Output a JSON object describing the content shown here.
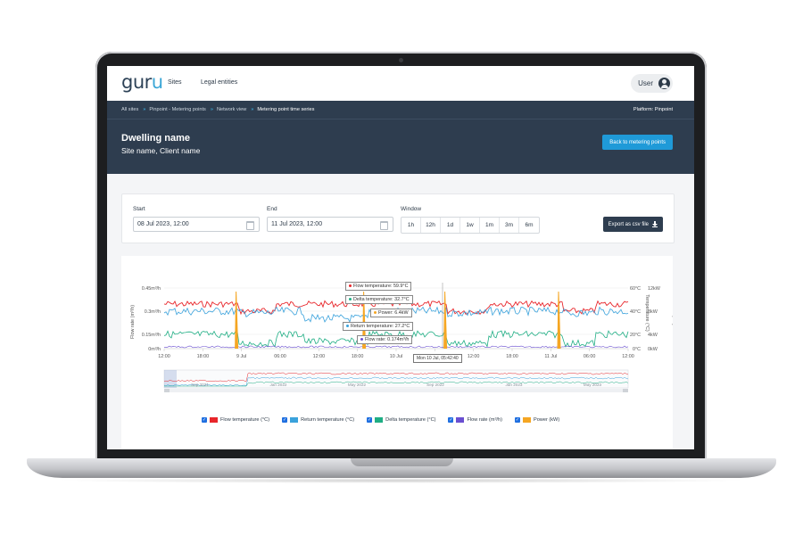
{
  "nav": {
    "logo_main": "gur",
    "logo_accent": "u",
    "links": [
      "Sites",
      "Legal entities"
    ],
    "user_label": "User"
  },
  "breadcrumb": {
    "items": [
      "All sites",
      "Pinpoint - Metering points",
      "Network view"
    ],
    "current": "Metering point time series",
    "platform": "Platform: Pinpoint"
  },
  "header": {
    "title": "Dwelling name",
    "subtitle": "Site name, Client name",
    "back_button": "Back to metering points"
  },
  "filters": {
    "start_label": "Start",
    "start_value": "08 Jul 2023, 12:00",
    "end_label": "End",
    "end_value": "11 Jul 2023, 12:00",
    "window_label": "Window",
    "window_options": [
      "1h",
      "12h",
      "1d",
      "1w",
      "1m",
      "3m",
      "6m"
    ],
    "export_label": "Export as csv file"
  },
  "chart": {
    "left_ticks": [
      "0.45m³/h",
      "0.3m³/h",
      "0.15m³/h",
      "0m³/h"
    ],
    "left_axis_label": "Flow rate (m³/h)",
    "right_temp_ticks": [
      "60°C",
      "40°C",
      "20°C",
      "0°C"
    ],
    "right_temp_label": "Temperature (°C)",
    "right_power_ticks": [
      "12kW",
      "8kW",
      "4kW",
      "0kW"
    ],
    "right_power_label": "Power (kW)",
    "x_ticks": [
      "12:00",
      "18:00",
      "9 Jul",
      "06:00",
      "12:00",
      "18:00",
      "10 Jul",
      "06:00",
      "12:00",
      "18:00",
      "11 Jul",
      "06:00",
      "12:00"
    ],
    "navigator_ticks": [
      "Sep 2021",
      "Jan 2022",
      "May 2022",
      "Sep 2022",
      "Jan 2023",
      "May 2023"
    ],
    "tooltips": {
      "flow_temperature": "Flow temperature: 59.9°C",
      "delta_temperature": "Delta temperature: 32.7°C",
      "power": "Power: 6.4kW",
      "return_temperature": "Return temperature: 27.2°C",
      "flow_rate": "Flow rate: 0.174m³/h",
      "x_label": "Mon 10 Jul, 05:42:40"
    },
    "colors": {
      "flow_temperature": "#e8262b",
      "return_temperature": "#3aa2dc",
      "delta_temperature": "#1fae84",
      "flow_rate": "#6a4fd1",
      "power": "#f5a623"
    },
    "legend": [
      "Flow temperature (°C)",
      "Return temperature (°C)",
      "Delta temperature (°C)",
      "Flow rate (m³/h)",
      "Power (kW)"
    ]
  }
}
